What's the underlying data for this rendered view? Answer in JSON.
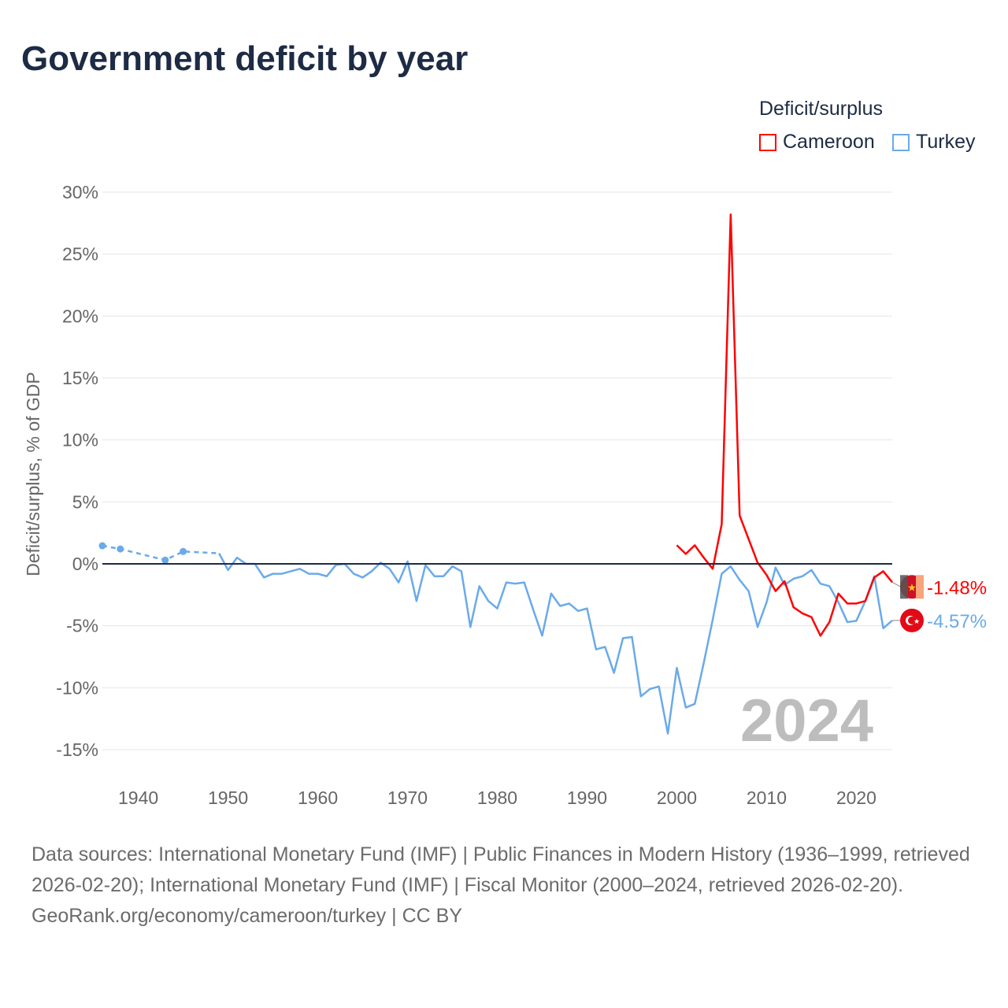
{
  "title": "Government deficit by year",
  "legend": {
    "title": "Deficit/surplus",
    "items": [
      {
        "name": "Cameroon",
        "color": "#ff0000"
      },
      {
        "name": "Turkey",
        "color": "#6aaaea"
      }
    ]
  },
  "watermark_year": "2024",
  "footer": {
    "sources": "Data sources: International Monetary Fund (IMF) | Public Finances in Modern History (1936–1999, retrieved 2026-02-20); International Monetary Fund (IMF) | Fiscal Monitor (2000–2024, retrieved 2026-02-20).",
    "credit": "GeoRank.org/economy/cameroon/turkey | CC BY"
  },
  "chart_data": {
    "type": "line",
    "title": "Government deficit by year",
    "xlabel": "",
    "ylabel": "Deficit/surplus, % of GDP",
    "xlim": [
      1936,
      2024
    ],
    "ylim": [
      -15,
      30
    ],
    "xticks": [
      "1940",
      "1950",
      "1960",
      "1970",
      "1980",
      "1990",
      "2000",
      "2010",
      "2020"
    ],
    "yticks": [
      "30%",
      "25%",
      "20%",
      "15%",
      "10%",
      "5%",
      "0%",
      "-5%",
      "-10%",
      "-15%"
    ],
    "grid": true,
    "legend_position": "top-right",
    "series": [
      {
        "name": "Cameroon",
        "color": "#ff0000",
        "end_label": "-1.48%",
        "x": [
          2000,
          2001,
          2002,
          2003,
          2004,
          2005,
          2006,
          2007,
          2008,
          2009,
          2010,
          2011,
          2012,
          2013,
          2014,
          2015,
          2016,
          2017,
          2018,
          2019,
          2020,
          2021,
          2022,
          2023,
          2024
        ],
        "y": [
          1.5,
          0.8,
          1.5,
          0.5,
          -0.4,
          3.2,
          28.2,
          3.9,
          2.0,
          0.1,
          -0.9,
          -2.2,
          -1.4,
          -3.5,
          -4.0,
          -4.3,
          -5.8,
          -4.7,
          -2.4,
          -3.2,
          -3.2,
          -3.0,
          -1.1,
          -0.6,
          -1.48
        ]
      },
      {
        "name": "Turkey",
        "color": "#6aaaea",
        "end_label": "-4.57%",
        "x": [
          1936,
          1938,
          1943,
          1945,
          1949,
          1950,
          1951,
          1952,
          1953,
          1954,
          1955,
          1956,
          1957,
          1958,
          1959,
          1960,
          1961,
          1962,
          1963,
          1964,
          1965,
          1966,
          1967,
          1968,
          1969,
          1970,
          1971,
          1972,
          1973,
          1974,
          1975,
          1976,
          1977,
          1978,
          1979,
          1980,
          1981,
          1982,
          1983,
          1984,
          1985,
          1986,
          1987,
          1988,
          1989,
          1990,
          1991,
          1992,
          1993,
          1994,
          1995,
          1996,
          1997,
          1998,
          1999,
          2000,
          2001,
          2002,
          2003,
          2004,
          2005,
          2006,
          2007,
          2008,
          2009,
          2010,
          2011,
          2012,
          2013,
          2014,
          2015,
          2016,
          2017,
          2018,
          2019,
          2020,
          2021,
          2022,
          2023,
          2024
        ],
        "y": [
          1.46,
          1.2,
          0.3,
          1.0,
          0.85,
          -0.5,
          0.5,
          0,
          0,
          -1.1,
          -0.8,
          -0.8,
          -0.6,
          -0.4,
          -0.8,
          -0.8,
          -1.0,
          -0.1,
          0,
          -0.8,
          -1.1,
          -0.6,
          0.1,
          -0.4,
          -1.5,
          0.2,
          -3.0,
          -0.1,
          -1.0,
          -1.0,
          -0.2,
          -0.6,
          -5.1,
          -1.8,
          -3.0,
          -3.6,
          -1.5,
          -1.6,
          -1.5,
          -3.7,
          -5.8,
          -2.4,
          -3.4,
          -3.2,
          -3.8,
          -3.6,
          -6.9,
          -6.7,
          -8.8,
          -6.0,
          -5.9,
          -10.7,
          -10.1,
          -9.9,
          -13.7,
          -8.4,
          -11.6,
          -11.3,
          -8.0,
          -4.5,
          -0.8,
          -0.2,
          -1.3,
          -2.2,
          -5.1,
          -3.1,
          -0.3,
          -1.7,
          -1.2,
          -1.0,
          -0.5,
          -1.6,
          -1.8,
          -3.1,
          -4.7,
          -4.6,
          -3.0,
          -1.0,
          -5.2,
          -4.57
        ]
      }
    ]
  }
}
